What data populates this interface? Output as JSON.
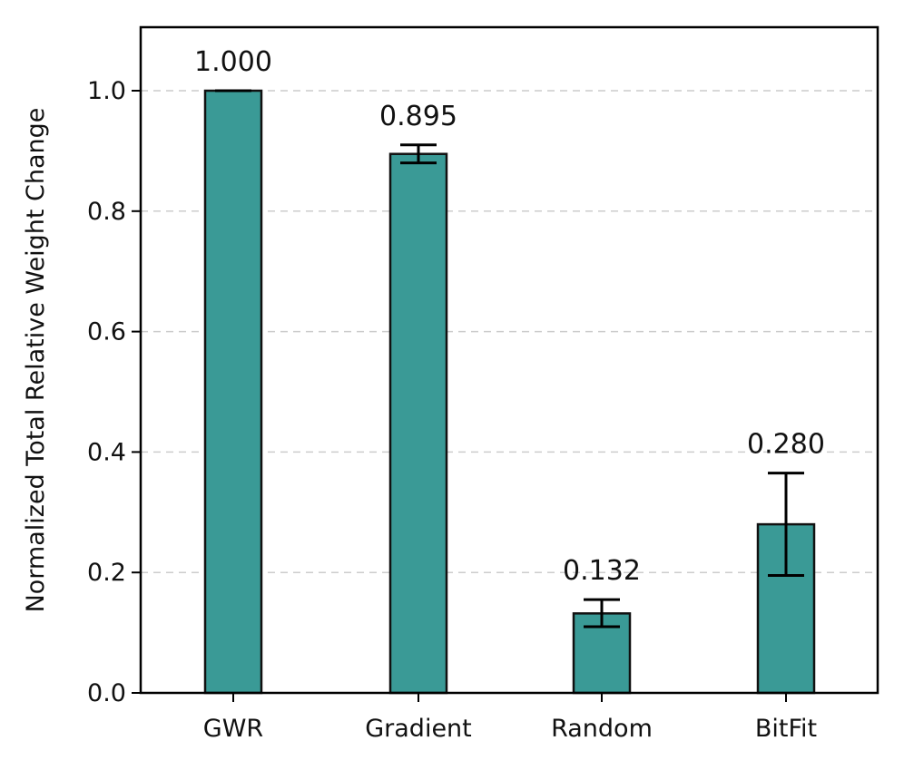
{
  "chart_data": {
    "type": "bar",
    "categories": [
      "GWR",
      "Gradient",
      "Random",
      "BitFit"
    ],
    "values": [
      1.0,
      0.895,
      0.132,
      0.28
    ],
    "error_low": [
      1.0,
      0.88,
      0.11,
      0.195
    ],
    "error_high": [
      1.0,
      0.91,
      0.155,
      0.365
    ],
    "data_labels": [
      "1.000",
      "0.895",
      "0.132",
      "0.280"
    ],
    "xlabel": "",
    "ylabel": "Normalized Total Relative Weight Change",
    "ylim": [
      0,
      1.1
    ],
    "yticks": [
      0.0,
      0.2,
      0.4,
      0.6,
      0.8,
      1.0
    ],
    "ytick_labels": [
      "0.0",
      "0.2",
      "0.4",
      "0.6",
      "0.8",
      "1.0"
    ],
    "grid": "y dashed",
    "bar_color": "#3a9a96"
  }
}
